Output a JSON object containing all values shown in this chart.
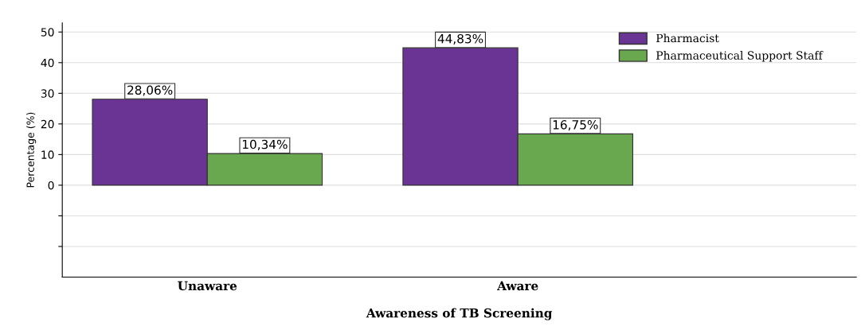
{
  "chart_data": {
    "type": "bar",
    "xlabel": "Awareness of TB Screening",
    "ylabel": "Percentage (%)",
    "categories": [
      "Unaware",
      "Aware"
    ],
    "series": [
      {
        "name": "Pharmacist",
        "color": "#6a3494",
        "values": [
          28.06,
          44.83
        ],
        "value_labels": [
          "28,06%",
          "44,83%"
        ]
      },
      {
        "name": "Pharmaceutical Support Staff",
        "color": "#6aa84f",
        "values": [
          10.34,
          16.75
        ],
        "value_labels": [
          "10,34%",
          "16,75%"
        ]
      }
    ],
    "ylim": [
      -30,
      53
    ],
    "yticks": [
      {
        "value": -20,
        "label": null
      },
      {
        "value": -10,
        "label": null
      },
      0,
      10,
      20,
      30,
      40,
      50
    ],
    "grid": "y",
    "legend": "top right"
  }
}
